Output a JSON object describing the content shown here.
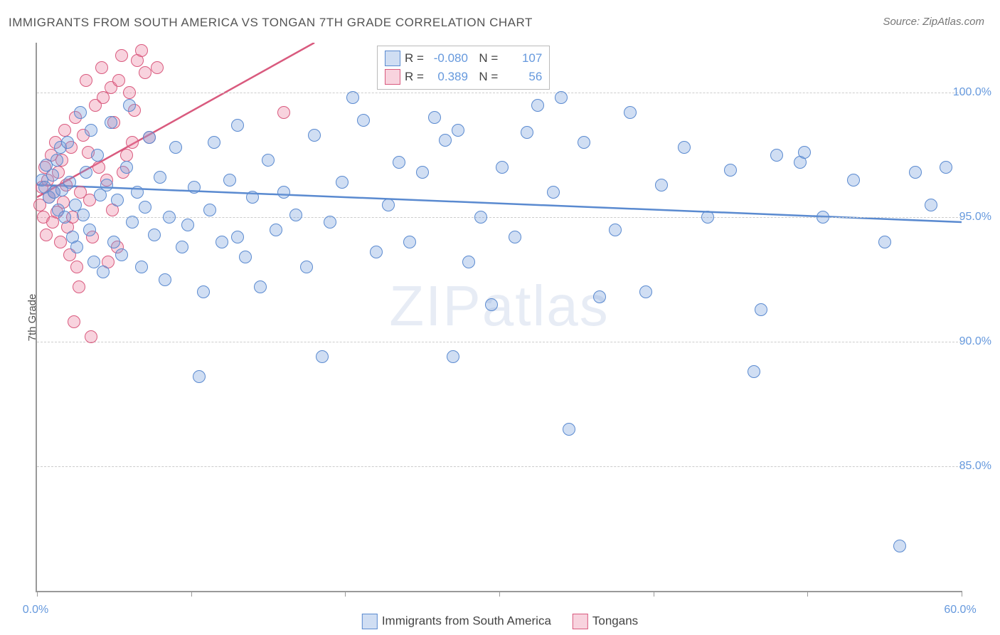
{
  "title": "IMMIGRANTS FROM SOUTH AMERICA VS TONGAN 7TH GRADE CORRELATION CHART",
  "source": "Source: ZipAtlas.com",
  "ylabel": "7th Grade",
  "watermark_a": "ZIP",
  "watermark_b": "atlas",
  "chart": {
    "type": "scatter",
    "xlim": [
      0,
      60
    ],
    "ylim": [
      80,
      102
    ],
    "ytick_values": [
      85,
      90,
      95,
      100
    ],
    "ytick_labels": [
      "85.0%",
      "90.0%",
      "95.0%",
      "100.0%"
    ],
    "xtick_values": [
      0,
      10,
      20,
      30,
      40,
      50,
      60
    ],
    "xtick_label_left": "0.0%",
    "xtick_label_right": "60.0%",
    "grid_color": "#cccccc",
    "axis_color": "#999999",
    "label_color": "#6699dd",
    "background_color": "#ffffff",
    "marker_radius": 9,
    "marker_stroke_width": 1.4,
    "trend_line_width": 2.5,
    "series": [
      {
        "name": "Immigrants from South America",
        "fill": "rgba(120,160,220,0.35)",
        "stroke": "#5a8ad0",
        "R": "-0.080",
        "N": "107",
        "trend": {
          "x1": 0,
          "y1": 96.3,
          "x2": 60,
          "y2": 94.8
        },
        "points": [
          [
            0.3,
            96.5
          ],
          [
            0.5,
            96.2
          ],
          [
            0.6,
            97.1
          ],
          [
            0.8,
            95.8
          ],
          [
            1.0,
            96.7
          ],
          [
            1.1,
            96.0
          ],
          [
            1.3,
            97.3
          ],
          [
            1.4,
            95.3
          ],
          [
            1.5,
            97.8
          ],
          [
            1.6,
            96.1
          ],
          [
            1.8,
            95.0
          ],
          [
            2.0,
            98.0
          ],
          [
            2.1,
            96.4
          ],
          [
            2.3,
            94.2
          ],
          [
            2.5,
            95.5
          ],
          [
            2.6,
            93.8
          ],
          [
            2.8,
            99.2
          ],
          [
            3.0,
            95.1
          ],
          [
            3.2,
            96.8
          ],
          [
            3.4,
            94.5
          ],
          [
            3.5,
            98.5
          ],
          [
            3.7,
            93.2
          ],
          [
            3.9,
            97.5
          ],
          [
            4.1,
            95.9
          ],
          [
            4.3,
            92.8
          ],
          [
            4.5,
            96.3
          ],
          [
            4.8,
            98.8
          ],
          [
            5.0,
            94.0
          ],
          [
            5.2,
            95.7
          ],
          [
            5.5,
            93.5
          ],
          [
            5.8,
            97.0
          ],
          [
            6.0,
            99.5
          ],
          [
            6.2,
            94.8
          ],
          [
            6.5,
            96.0
          ],
          [
            6.8,
            93.0
          ],
          [
            7.0,
            95.4
          ],
          [
            7.3,
            98.2
          ],
          [
            7.6,
            94.3
          ],
          [
            8.0,
            96.6
          ],
          [
            8.3,
            92.5
          ],
          [
            8.6,
            95.0
          ],
          [
            9.0,
            97.8
          ],
          [
            9.4,
            93.8
          ],
          [
            9.8,
            94.7
          ],
          [
            10.2,
            96.2
          ],
          [
            10.5,
            88.6
          ],
          [
            10.8,
            92.0
          ],
          [
            11.2,
            95.3
          ],
          [
            11.5,
            98.0
          ],
          [
            12.0,
            94.0
          ],
          [
            12.5,
            96.5
          ],
          [
            13.0,
            98.7
          ],
          [
            13.5,
            93.4
          ],
          [
            14.0,
            95.8
          ],
          [
            14.5,
            92.2
          ],
          [
            15.0,
            97.3
          ],
          [
            15.5,
            94.5
          ],
          [
            16.0,
            96.0
          ],
          [
            16.8,
            95.1
          ],
          [
            17.5,
            93.0
          ],
          [
            18.0,
            98.3
          ],
          [
            18.5,
            89.4
          ],
          [
            19.0,
            94.8
          ],
          [
            19.8,
            96.4
          ],
          [
            20.5,
            99.8
          ],
          [
            21.2,
            98.9
          ],
          [
            22.0,
            93.6
          ],
          [
            22.8,
            95.5
          ],
          [
            23.5,
            97.2
          ],
          [
            24.2,
            94.0
          ],
          [
            25.0,
            96.8
          ],
          [
            25.8,
            99.0
          ],
          [
            26.5,
            98.1
          ],
          [
            27.0,
            89.4
          ],
          [
            27.3,
            98.5
          ],
          [
            28.0,
            93.2
          ],
          [
            28.8,
            95.0
          ],
          [
            29.5,
            91.5
          ],
          [
            30.2,
            97.0
          ],
          [
            31.0,
            94.2
          ],
          [
            31.8,
            98.4
          ],
          [
            32.5,
            99.5
          ],
          [
            33.5,
            96.0
          ],
          [
            34.5,
            86.5
          ],
          [
            35.5,
            98.0
          ],
          [
            36.5,
            91.8
          ],
          [
            37.5,
            94.5
          ],
          [
            38.5,
            99.2
          ],
          [
            39.5,
            92.0
          ],
          [
            40.5,
            96.3
          ],
          [
            42.0,
            97.8
          ],
          [
            43.5,
            95.0
          ],
          [
            45.0,
            96.9
          ],
          [
            46.5,
            88.8
          ],
          [
            48.0,
            97.5
          ],
          [
            49.5,
            97.2
          ],
          [
            49.8,
            97.6
          ],
          [
            51.0,
            95.0
          ],
          [
            53.0,
            96.5
          ],
          [
            55.0,
            94.0
          ],
          [
            56.0,
            81.8
          ],
          [
            57.0,
            96.8
          ],
          [
            58.0,
            95.5
          ],
          [
            59.0,
            97.0
          ],
          [
            47.0,
            91.3
          ],
          [
            34.0,
            99.8
          ],
          [
            13.0,
            94.2
          ]
        ]
      },
      {
        "name": "Tongans",
        "fill": "rgba(235,130,160,0.35)",
        "stroke": "#d95a7e",
        "R": "0.389",
        "N": "56",
        "trend": {
          "x1": 0,
          "y1": 95.8,
          "x2": 18,
          "y2": 102
        },
        "points": [
          [
            0.2,
            95.5
          ],
          [
            0.3,
            96.2
          ],
          [
            0.4,
            95.0
          ],
          [
            0.5,
            97.0
          ],
          [
            0.6,
            94.3
          ],
          [
            0.7,
            96.5
          ],
          [
            0.8,
            95.8
          ],
          [
            0.9,
            97.5
          ],
          [
            1.0,
            94.8
          ],
          [
            1.1,
            96.0
          ],
          [
            1.2,
            98.0
          ],
          [
            1.3,
            95.2
          ],
          [
            1.4,
            96.8
          ],
          [
            1.5,
            94.0
          ],
          [
            1.6,
            97.3
          ],
          [
            1.7,
            95.6
          ],
          [
            1.8,
            98.5
          ],
          [
            1.9,
            96.3
          ],
          [
            2.0,
            94.6
          ],
          [
            2.1,
            93.5
          ],
          [
            2.2,
            97.8
          ],
          [
            2.3,
            95.0
          ],
          [
            2.5,
            99.0
          ],
          [
            2.6,
            93.0
          ],
          [
            2.7,
            92.2
          ],
          [
            2.8,
            96.0
          ],
          [
            3.0,
            98.3
          ],
          [
            3.2,
            100.5
          ],
          [
            3.4,
            95.7
          ],
          [
            3.6,
            94.2
          ],
          [
            3.8,
            99.5
          ],
          [
            4.0,
            97.0
          ],
          [
            4.2,
            101.0
          ],
          [
            4.5,
            96.5
          ],
          [
            4.8,
            100.2
          ],
          [
            5.0,
            98.8
          ],
          [
            5.2,
            93.8
          ],
          [
            5.5,
            101.5
          ],
          [
            5.8,
            97.5
          ],
          [
            6.0,
            100.0
          ],
          [
            6.3,
            99.3
          ],
          [
            6.5,
            101.3
          ],
          [
            7.0,
            100.8
          ],
          [
            7.3,
            98.2
          ],
          [
            7.8,
            101.0
          ],
          [
            3.5,
            90.2
          ],
          [
            2.4,
            90.8
          ],
          [
            4.3,
            99.8
          ],
          [
            5.3,
            100.5
          ],
          [
            6.8,
            101.7
          ],
          [
            4.6,
            93.2
          ],
          [
            5.6,
            96.8
          ],
          [
            6.2,
            98.0
          ],
          [
            3.3,
            97.6
          ],
          [
            4.9,
            95.3
          ],
          [
            16.0,
            99.2
          ]
        ]
      }
    ]
  },
  "legend_bottom": {
    "series1_label": "Immigrants from South America",
    "series2_label": "Tongans"
  }
}
